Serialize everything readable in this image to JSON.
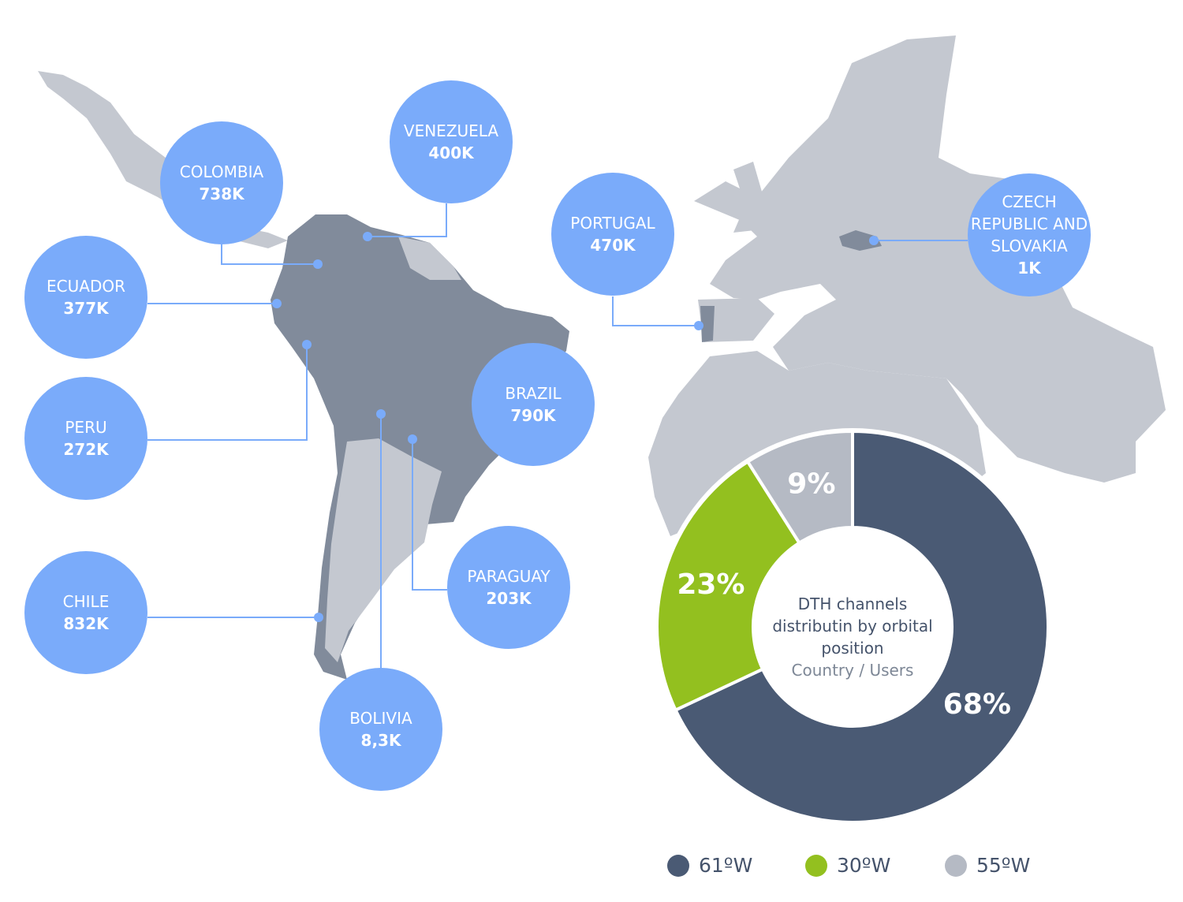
{
  "chart_data": {
    "type": "donut",
    "title": "DTH channels distributin by orbital position",
    "subtitle": "Country / Users",
    "categories": [
      "61ºW",
      "30ºW",
      "55ºW"
    ],
    "values": [
      68,
      23,
      9
    ],
    "value_labels": [
      "68%",
      "23%",
      "9%"
    ],
    "colors": [
      "#4a5a74",
      "#93c01f",
      "#b5bac4"
    ]
  },
  "callouts": [
    {
      "country": "COLOMBIA",
      "users": "738K"
    },
    {
      "country": "VENEZUELA",
      "users": "400K"
    },
    {
      "country": "ECUADOR",
      "users": "377K"
    },
    {
      "country": "PERU",
      "users": "272K"
    },
    {
      "country": "CHILE",
      "users": "832K"
    },
    {
      "country": "BOLIVIA",
      "users": "8,3K"
    },
    {
      "country": "PARAGUAY",
      "users": "203K"
    },
    {
      "country": "BRAZIL",
      "users": "790K"
    },
    {
      "country": "PORTUGAL",
      "users": "470K"
    },
    {
      "country": "CZECH REPUBLIC AND SLOVAKIA",
      "users": "1K"
    }
  ]
}
